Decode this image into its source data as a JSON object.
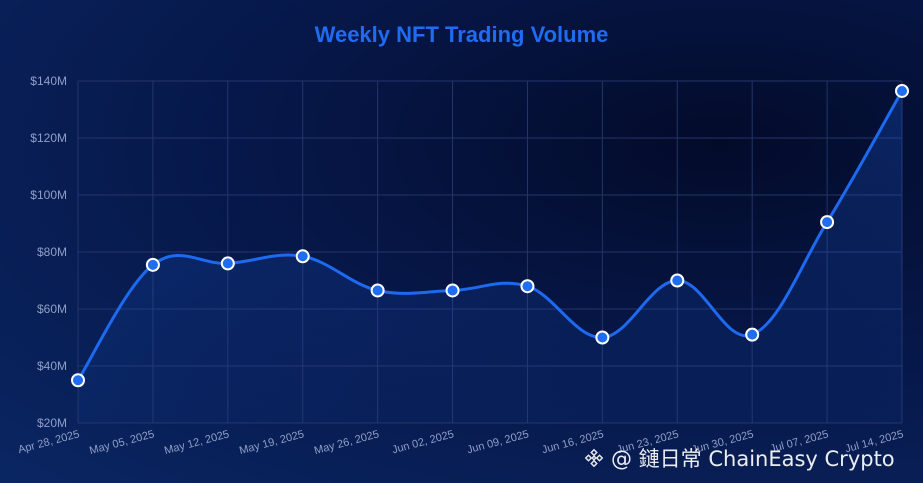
{
  "chart_data": {
    "type": "line",
    "title": "Weekly NFT Trading Volume",
    "categories": [
      "Apr 28, 2025",
      "May 05, 2025",
      "May 12, 2025",
      "May 19, 2025",
      "May 26, 2025",
      "Jun 02, 2025",
      "Jun 09, 2025",
      "Jun 16, 2025",
      "Jun 23, 2025",
      "Jun 30, 2025",
      "Jul 07, 2025",
      "Jul 14, 2025"
    ],
    "series": [
      {
        "values": [
          35,
          75.5,
          76,
          78.5,
          66.5,
          66.5,
          68,
          50,
          70,
          51,
          90.5,
          136.5
        ]
      }
    ],
    "yticks": [
      "$20M",
      "$40M",
      "$60M",
      "$80M",
      "$100M",
      "$120M",
      "$140M"
    ],
    "ylim": [
      20,
      140
    ],
    "unit": "$M",
    "grid": true,
    "smooth": true,
    "colors": {
      "line": "#1d6af0",
      "point_fill": "#1f6df2",
      "point_stroke": "#ffffff",
      "title": "#1f6cf2",
      "tick": "#8f9fc7",
      "grid": "#24356b"
    }
  },
  "watermark": {
    "text": "@ 鏈日常 ChainEasy Crypto",
    "icon": "binance-logo-icon"
  }
}
